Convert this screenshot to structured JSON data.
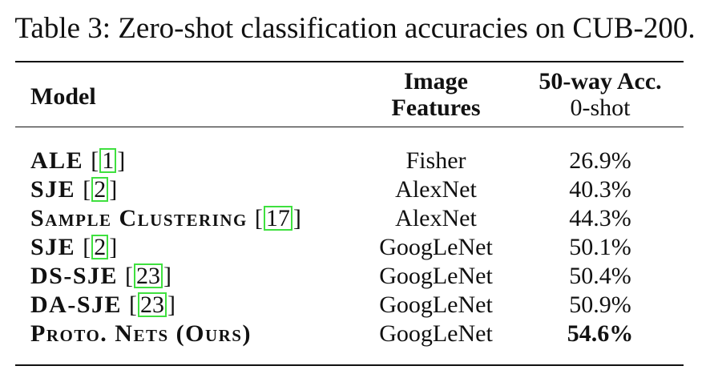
{
  "caption": "Table 3: Zero-shot classification accuracies on CUB-200.",
  "header": {
    "model": "Model",
    "features_line1": "Image",
    "features_line2": "Features",
    "acc_line1": "50-way Acc.",
    "acc_line2": "0-shot"
  },
  "rows": [
    {
      "name": "ALE",
      "cite": "1",
      "features": "Fisher",
      "acc": "26.9%"
    },
    {
      "name": "SJE",
      "cite": "2",
      "features": "AlexNet",
      "acc": "40.3%"
    },
    {
      "name": "Sample Clustering",
      "cite": "17",
      "features": "AlexNet",
      "acc": "44.3%"
    },
    {
      "name": "SJE",
      "cite": "2",
      "features": "GoogLeNet",
      "acc": "50.1%"
    },
    {
      "name": "DS-SJE",
      "cite": "23",
      "features": "GoogLeNet",
      "acc": "50.4%"
    },
    {
      "name": "DA-SJE",
      "cite": "23",
      "features": "GoogLeNet",
      "acc": "50.9%"
    },
    {
      "name": "Proto. Nets (Ours)",
      "cite": "",
      "features": "GoogLeNet",
      "acc": "54.6%"
    }
  ],
  "best_row_index": 6,
  "citation_box_color": "#3fe03f"
}
